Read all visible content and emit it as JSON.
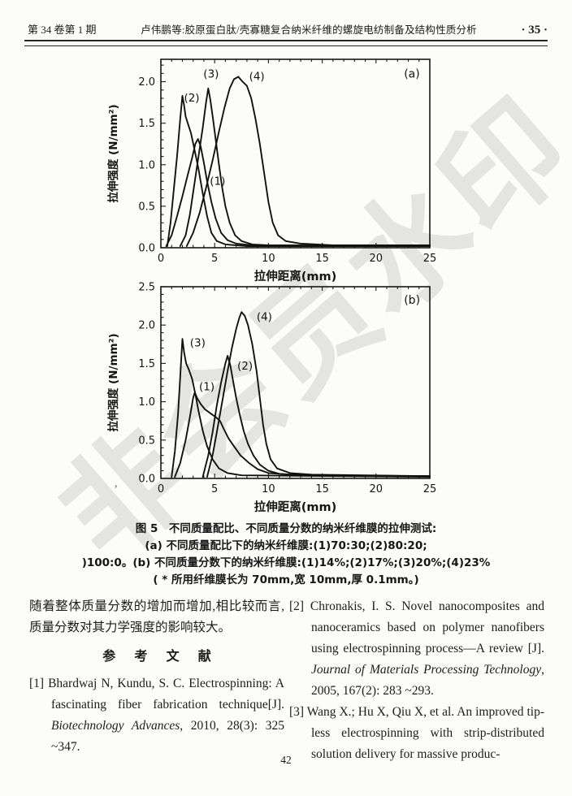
{
  "header": {
    "issue": "第 34 卷第 1 期",
    "title": "卢伟鹏等:胶原蛋白肽/壳寡糖复合纳米纤维的螺旋电纺制备及结构性质分析",
    "page_marker": "· 35 ·"
  },
  "watermark": {
    "text": "非会员水印"
  },
  "figure": {
    "caption_line1": "图 5　不同质量配比、不同质量分数的纳米纤维膜的拉伸测试:",
    "caption_line2": "(a) 不同质量配比下的纳米纤维膜:(1)70:30;(2)80:20;",
    "caption_line3": ")100:0。(b) 不同质量分数下的纳米纤维膜:(1)14%;(2)17%;(3)20%;(4)23%",
    "caption_line4": "( * 所用纤维膜长为 70mm,宽 10mm,厚 0.1mm。)"
  },
  "chart_data": [
    {
      "type": "line",
      "panel": "(a)",
      "panel_pos": [
        22.6,
        2.05
      ],
      "xlabel": "拉伸距离(mm)",
      "ylabel": "拉伸强度 (N/mm²)",
      "xlim": [
        0,
        25
      ],
      "ylim": [
        0,
        2.27
      ],
      "xticks": [
        0,
        5,
        10,
        15,
        20,
        25
      ],
      "yticks": [
        0,
        0.5,
        1,
        1.5,
        2
      ],
      "ytick_labels": [
        "0.0",
        "0.5",
        "1.0",
        "1.5",
        "2.0"
      ],
      "minor_x_step": 1,
      "minor_y_step": 0.1,
      "grid": false,
      "series": [
        {
          "name": "(1)",
          "label_pos": [
            4.55,
            0.76
          ],
          "points": [
            [
              0.5,
              0.02
            ],
            [
              1.0,
              0.15
            ],
            [
              1.5,
              0.38
            ],
            [
              2.0,
              0.62
            ],
            [
              2.5,
              0.88
            ],
            [
              2.9,
              1.08
            ],
            [
              3.2,
              1.25
            ],
            [
              3.45,
              1.31
            ],
            [
              3.7,
              1.22
            ],
            [
              4.0,
              1.02
            ],
            [
              4.3,
              0.8
            ],
            [
              4.7,
              0.55
            ],
            [
              5.1,
              0.35
            ],
            [
              5.6,
              0.18
            ],
            [
              6.2,
              0.09
            ],
            [
              7.0,
              0.05
            ],
            [
              8.5,
              0.03
            ],
            [
              25,
              0.02
            ]
          ]
        },
        {
          "name": "(2)",
          "label_pos": [
            2.15,
            1.76
          ],
          "points": [
            [
              0.6,
              0.02
            ],
            [
              0.9,
              0.3
            ],
            [
              1.2,
              0.7
            ],
            [
              1.5,
              1.1
            ],
            [
              1.8,
              1.55
            ],
            [
              2.0,
              1.83
            ],
            [
              2.15,
              1.72
            ],
            [
              2.3,
              1.58
            ],
            [
              2.5,
              1.5
            ],
            [
              2.8,
              1.38
            ],
            [
              3.1,
              1.2
            ],
            [
              3.5,
              0.95
            ],
            [
              3.9,
              0.65
            ],
            [
              4.3,
              0.38
            ],
            [
              4.7,
              0.18
            ],
            [
              5.2,
              0.08
            ],
            [
              6.0,
              0.04
            ],
            [
              8.0,
              0.02
            ],
            [
              25,
              0.02
            ]
          ]
        },
        {
          "name": "(3)",
          "label_pos": [
            3.95,
            2.05
          ],
          "points": [
            [
              1.8,
              0.02
            ],
            [
              2.3,
              0.15
            ],
            [
              2.7,
              0.4
            ],
            [
              3.1,
              0.75
            ],
            [
              3.5,
              1.1
            ],
            [
              3.9,
              1.45
            ],
            [
              4.2,
              1.75
            ],
            [
              4.4,
              1.92
            ],
            [
              4.6,
              1.78
            ],
            [
              4.85,
              1.55
            ],
            [
              5.1,
              1.3
            ],
            [
              5.4,
              1.0
            ],
            [
              5.7,
              0.72
            ],
            [
              6.0,
              0.5
            ],
            [
              6.4,
              0.3
            ],
            [
              6.9,
              0.15
            ],
            [
              7.5,
              0.08
            ],
            [
              8.5,
              0.04
            ],
            [
              10,
              0.03
            ],
            [
              25,
              0.02
            ]
          ]
        },
        {
          "name": "(4)",
          "label_pos": [
            8.2,
            2.02
          ],
          "points": [
            [
              2.4,
              0.02
            ],
            [
              3.0,
              0.18
            ],
            [
              3.6,
              0.42
            ],
            [
              4.2,
              0.72
            ],
            [
              4.8,
              1.05
            ],
            [
              5.4,
              1.4
            ],
            [
              5.9,
              1.68
            ],
            [
              6.4,
              1.92
            ],
            [
              6.8,
              2.03
            ],
            [
              7.2,
              2.06
            ],
            [
              7.6,
              2.0
            ],
            [
              8.0,
              1.95
            ],
            [
              8.4,
              1.8
            ],
            [
              8.8,
              1.55
            ],
            [
              9.2,
              1.25
            ],
            [
              9.6,
              0.9
            ],
            [
              10.0,
              0.55
            ],
            [
              10.4,
              0.3
            ],
            [
              10.9,
              0.15
            ],
            [
              11.6,
              0.08
            ],
            [
              13,
              0.05
            ],
            [
              16,
              0.03
            ],
            [
              25,
              0.03
            ]
          ]
        }
      ]
    },
    {
      "type": "line",
      "panel": "(b)",
      "panel_pos": [
        22.6,
        2.28
      ],
      "xlabel": "拉伸距离(mm)",
      "ylabel": "拉伸强度 (N/mm²)",
      "xlim": [
        0,
        25
      ],
      "ylim": [
        0,
        2.5
      ],
      "xticks": [
        0,
        5,
        10,
        15,
        20,
        25
      ],
      "yticks": [
        0,
        0.5,
        1,
        1.5,
        2,
        2.5
      ],
      "ytick_labels": [
        "0.0",
        "0.5",
        "1.0",
        "1.5",
        "2.0",
        "2.5"
      ],
      "minor_x_step": 1,
      "minor_y_step": 0.1,
      "grid": false,
      "series": [
        {
          "name": "(1)",
          "label_pos": [
            3.55,
            1.15
          ],
          "points": [
            [
              1.3,
              0.02
            ],
            [
              1.8,
              0.2
            ],
            [
              2.3,
              0.5
            ],
            [
              2.7,
              0.8
            ],
            [
              3.0,
              1.05
            ],
            [
              3.15,
              1.12
            ],
            [
              3.4,
              1.04
            ],
            [
              3.7,
              0.97
            ],
            [
              4.1,
              0.9
            ],
            [
              4.6,
              0.85
            ],
            [
              5.1,
              0.8
            ],
            [
              5.5,
              0.75
            ],
            [
              5.9,
              0.63
            ],
            [
              6.3,
              0.52
            ],
            [
              6.8,
              0.42
            ],
            [
              7.4,
              0.3
            ],
            [
              8.2,
              0.2
            ],
            [
              9.0,
              0.12
            ],
            [
              10,
              0.07
            ],
            [
              12,
              0.05
            ],
            [
              15,
              0.04
            ],
            [
              25,
              0.03
            ]
          ]
        },
        {
          "name": "(2)",
          "label_pos": [
            7.1,
            1.42
          ],
          "points": [
            [
              3.9,
              0.02
            ],
            [
              4.4,
              0.3
            ],
            [
              4.8,
              0.6
            ],
            [
              5.2,
              0.95
            ],
            [
              5.6,
              1.25
            ],
            [
              6.0,
              1.5
            ],
            [
              6.2,
              1.6
            ],
            [
              6.45,
              1.48
            ],
            [
              6.7,
              1.28
            ],
            [
              7.0,
              1.05
            ],
            [
              7.3,
              0.85
            ],
            [
              7.7,
              0.62
            ],
            [
              8.1,
              0.45
            ],
            [
              8.6,
              0.3
            ],
            [
              9.2,
              0.18
            ],
            [
              10,
              0.1
            ],
            [
              11,
              0.06
            ],
            [
              13,
              0.04
            ],
            [
              25,
              0.03
            ]
          ]
        },
        {
          "name": "(3)",
          "label_pos": [
            2.7,
            1.72
          ],
          "points": [
            [
              1.0,
              0.02
            ],
            [
              1.3,
              0.35
            ],
            [
              1.6,
              0.85
            ],
            [
              1.85,
              1.45
            ],
            [
              2.0,
              1.82
            ],
            [
              2.15,
              1.65
            ],
            [
              2.35,
              1.5
            ],
            [
              2.6,
              1.42
            ],
            [
              2.9,
              1.3
            ],
            [
              3.2,
              1.1
            ],
            [
              3.5,
              0.88
            ],
            [
              3.9,
              0.62
            ],
            [
              4.3,
              0.42
            ],
            [
              4.8,
              0.25
            ],
            [
              5.4,
              0.13
            ],
            [
              6.2,
              0.07
            ],
            [
              7.5,
              0.04
            ],
            [
              25,
              0.02
            ]
          ]
        },
        {
          "name": "(4)",
          "label_pos": [
            8.9,
            2.06
          ],
          "points": [
            [
              4.3,
              0.02
            ],
            [
              4.8,
              0.3
            ],
            [
              5.2,
              0.6
            ],
            [
              5.7,
              1.0
            ],
            [
              6.2,
              1.4
            ],
            [
              6.6,
              1.7
            ],
            [
              7.0,
              1.95
            ],
            [
              7.3,
              2.1
            ],
            [
              7.5,
              2.17
            ],
            [
              7.8,
              2.12
            ],
            [
              8.1,
              2.0
            ],
            [
              8.5,
              1.75
            ],
            [
              8.9,
              1.4
            ],
            [
              9.2,
              1.05
            ],
            [
              9.5,
              0.7
            ],
            [
              9.8,
              0.45
            ],
            [
              10.2,
              0.25
            ],
            [
              10.8,
              0.13
            ],
            [
              12,
              0.07
            ],
            [
              14,
              0.05
            ],
            [
              25,
              0.03
            ]
          ]
        }
      ]
    }
  ],
  "body": {
    "paragraph": "随着整体质量分数的增加而增加,相比较而言,质量分数对其力学强度的影响较大。",
    "references_heading": "参 考 文 献"
  },
  "references": {
    "items": [
      {
        "segments": [
          {
            "text": "[1] Bhardwaj N, Kundu, S. C. Electrospinning: A fascinating fiber fabrication technique[J]. ",
            "italic": false
          },
          {
            "text": "Biotechnology Advances",
            "italic": true
          },
          {
            "text": ", 2010, 28(3): 325 ~347.",
            "italic": false
          }
        ]
      },
      {
        "segments": [
          {
            "text": "[2] Chronakis, I. S. Novel nanocomposites and nanoceramics based on polymer nanofibers using electrospinning process—A review [J]. ",
            "italic": false
          },
          {
            "text": "Journal of Materials Processing Technology",
            "italic": true
          },
          {
            "text": ", 2005, 167(2): 283 ~293.",
            "italic": false
          }
        ]
      },
      {
        "segments": [
          {
            "text": "[3] Wang X.; Hu X, Qiu X, et al. An improved tip-less electrospinning with strip-distributed solution delivery for massive produc-",
            "italic": false
          }
        ]
      }
    ]
  },
  "artifacts": {
    "stray_comma": ","
  },
  "page": {
    "number": "42"
  }
}
